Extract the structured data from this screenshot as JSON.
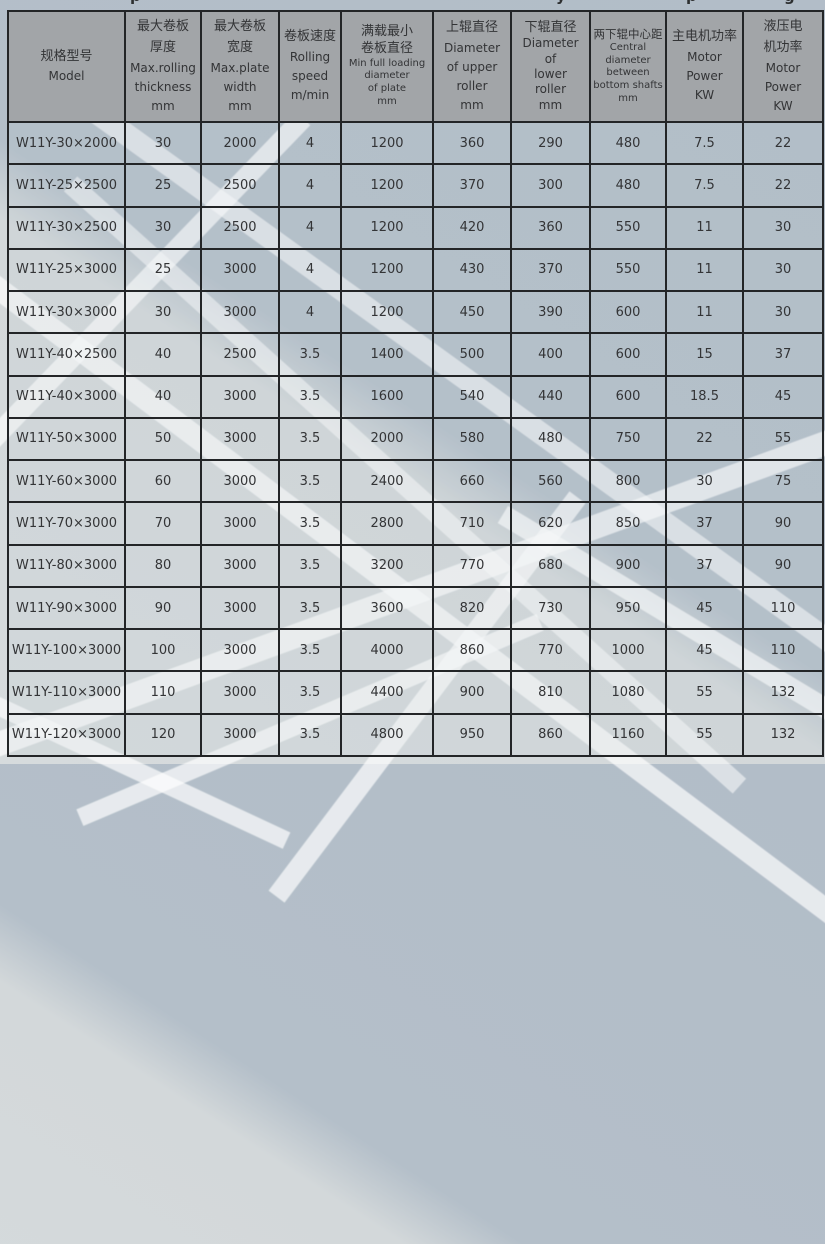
{
  "top_edge_fragments": [
    {
      "glyph": "p"
    },
    {
      "glyph": "y"
    },
    {
      "glyph": "p"
    },
    {
      "glyph": "g"
    }
  ],
  "colors": {
    "page_base": "#d4d9db",
    "page_dark_band": "#b4bfc9",
    "stripe": "#ffffff",
    "header_bg": "#a2a5a8",
    "grid_border": "#232527",
    "text": "#333436"
  },
  "table": {
    "columns": [
      {
        "id": "model",
        "zh": [
          "规格型号"
        ],
        "en": [
          "Model"
        ],
        "unit": ""
      },
      {
        "id": "max-thickness",
        "zh": [
          "最大卷板",
          "厚度"
        ],
        "en": [
          "Max.rolling",
          "thickness"
        ],
        "unit": "mm"
      },
      {
        "id": "max-width",
        "zh": [
          "最大卷板",
          "宽度"
        ],
        "en": [
          "Max.plate",
          "width"
        ],
        "unit": "mm"
      },
      {
        "id": "rolling-speed",
        "zh": [
          "卷板速度"
        ],
        "en": [
          "Rolling",
          "speed"
        ],
        "unit": "m/min"
      },
      {
        "id": "min-diameter",
        "zh": [
          "满载最小",
          "卷板直径"
        ],
        "en": [
          "Min full loading",
          "diameter",
          "of plate"
        ],
        "unit": "mm",
        "small_en": true,
        "small_unit": true
      },
      {
        "id": "upper-roller",
        "zh": [
          "上辊直径"
        ],
        "en": [
          "Diameter",
          "of upper",
          "roller"
        ],
        "unit": "mm"
      },
      {
        "id": "lower-roller",
        "zh": [
          "下辊直径"
        ],
        "en": [
          "Diameter",
          "of",
          "lower",
          "roller"
        ],
        "unit": "mm"
      },
      {
        "id": "central-distance",
        "zh": [
          "两下辊中心距"
        ],
        "en": [
          "Central",
          "diameter",
          "between",
          "bottom shafts"
        ],
        "unit": "mm",
        "small_zh": true,
        "small_en": true,
        "small_unit": true
      },
      {
        "id": "main-motor-power",
        "zh": [
          "主电机功率"
        ],
        "en": [
          "Motor",
          "Power"
        ],
        "unit": "KW"
      },
      {
        "id": "hydraulic-motor-power",
        "zh": [
          "液压电",
          "机功率"
        ],
        "en": [
          "Motor",
          "Power"
        ],
        "unit": "KW"
      }
    ],
    "rows": [
      [
        "W11Y-30×2000",
        "30",
        "2000",
        "4",
        "1200",
        "360",
        "290",
        "480",
        "7.5",
        "22"
      ],
      [
        "W11Y-25×2500",
        "25",
        "2500",
        "4",
        "1200",
        "370",
        "300",
        "480",
        "7.5",
        "22"
      ],
      [
        "W11Y-30×2500",
        "30",
        "2500",
        "4",
        "1200",
        "420",
        "360",
        "550",
        "11",
        "30"
      ],
      [
        "W11Y-25×3000",
        "25",
        "3000",
        "4",
        "1200",
        "430",
        "370",
        "550",
        "11",
        "30"
      ],
      [
        "W11Y-30×3000",
        "30",
        "3000",
        "4",
        "1200",
        "450",
        "390",
        "600",
        "11",
        "30"
      ],
      [
        "W11Y-40×2500",
        "40",
        "2500",
        "3.5",
        "1400",
        "500",
        "400",
        "600",
        "15",
        "37"
      ],
      [
        "W11Y-40×3000",
        "40",
        "3000",
        "3.5",
        "1600",
        "540",
        "440",
        "600",
        "18.5",
        "45"
      ],
      [
        "W11Y-50×3000",
        "50",
        "3000",
        "3.5",
        "2000",
        "580",
        "480",
        "750",
        "22",
        "55"
      ],
      [
        "W11Y-60×3000",
        "60",
        "3000",
        "3.5",
        "2400",
        "660",
        "560",
        "800",
        "30",
        "75"
      ],
      [
        "W11Y-70×3000",
        "70",
        "3000",
        "3.5",
        "2800",
        "710",
        "620",
        "850",
        "37",
        "90"
      ],
      [
        "W11Y-80×3000",
        "80",
        "3000",
        "3.5",
        "3200",
        "770",
        "680",
        "900",
        "37",
        "90"
      ],
      [
        "W11Y-90×3000",
        "90",
        "3000",
        "3.5",
        "3600",
        "820",
        "730",
        "950",
        "45",
        "110"
      ],
      [
        "W11Y-100×3000",
        "100",
        "3000",
        "3.5",
        "4000",
        "860",
        "770",
        "1000",
        "45",
        "110"
      ],
      [
        "W11Y-110×3000",
        "110",
        "3000",
        "3.5",
        "4400",
        "900",
        "810",
        "1080",
        "55",
        "132"
      ],
      [
        "W11Y-120×3000",
        "120",
        "3000",
        "3.5",
        "4800",
        "950",
        "860",
        "1160",
        "55",
        "132"
      ]
    ]
  }
}
